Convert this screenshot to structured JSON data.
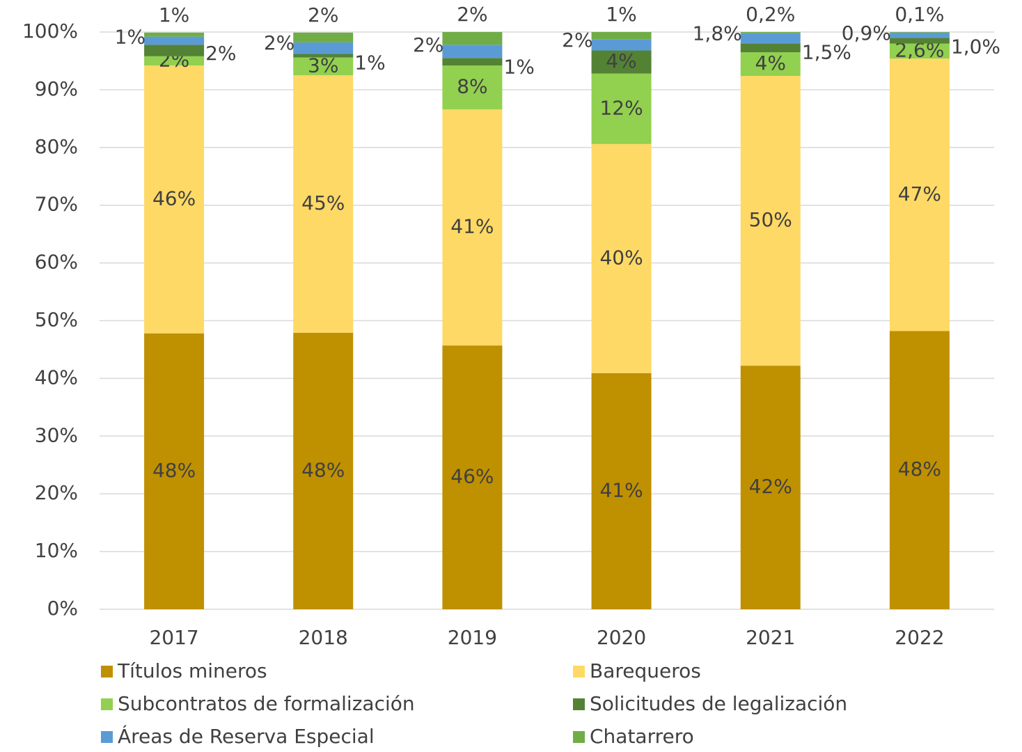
{
  "chart_data": {
    "type": "stacked_bar",
    "categories": [
      "2017",
      "2018",
      "2019",
      "2020",
      "2021",
      "2022"
    ],
    "series": [
      {
        "name": "Títulos mineros",
        "color": "#bf9000",
        "values": [
          47.8,
          47.9,
          45.7,
          40.9,
          42.2,
          48.2
        ],
        "value_labels": [
          "48%",
          "48%",
          "46%",
          "41%",
          "42%",
          "48%"
        ]
      },
      {
        "name": "Barequeros",
        "color": "#ffd966",
        "values": [
          46.4,
          44.6,
          40.9,
          39.7,
          50.2,
          47.2
        ],
        "value_labels": [
          "46%",
          "45%",
          "41%",
          "40%",
          "50%",
          "47%"
        ]
      },
      {
        "name": "Subcontratos de formalización",
        "color": "#92d050",
        "values": [
          1.6,
          3.1,
          7.6,
          12.2,
          4.1,
          2.6
        ],
        "value_labels": [
          "2%",
          "3%",
          "8%",
          "12%",
          "4%",
          "2,6%"
        ]
      },
      {
        "name": "Solicitudes de legalización",
        "color": "#548235",
        "values": [
          2.0,
          0.6,
          1.3,
          4.0,
          1.5,
          1.0
        ],
        "value_labels": [
          "2%",
          "1%",
          "1%",
          "4%",
          "1,5%",
          "1,0%"
        ]
      },
      {
        "name": "Áreas de Reserva Especial",
        "color": "#5b9bd5",
        "values": [
          1.4,
          2.0,
          2.3,
          1.9,
          1.8,
          0.9
        ],
        "value_labels": [
          "1%",
          "2%",
          "2%",
          "2%",
          "1,8%",
          "0,9%"
        ]
      },
      {
        "name": "Chatarrero",
        "color": "#70ad47",
        "values": [
          0.7,
          1.7,
          2.2,
          1.3,
          0.2,
          0.1
        ],
        "value_labels": [
          "1%",
          "2%",
          "2%",
          "1%",
          "0,2%",
          "0,1%"
        ]
      }
    ],
    "ylim": [
      0,
      100
    ],
    "yticks": [
      {
        "value": 0,
        "label": "0%"
      },
      {
        "value": 10,
        "label": "10%"
      },
      {
        "value": 20,
        "label": "20%"
      },
      {
        "value": 30,
        "label": "30%"
      },
      {
        "value": 40,
        "label": "40%"
      },
      {
        "value": 50,
        "label": "50%"
      },
      {
        "value": 60,
        "label": "60%"
      },
      {
        "value": 70,
        "label": "70%"
      },
      {
        "value": 80,
        "label": "80%"
      },
      {
        "value": 90,
        "label": "90%"
      },
      {
        "value": 100,
        "label": "100%"
      }
    ],
    "grid": true,
    "legend": "bottom"
  }
}
